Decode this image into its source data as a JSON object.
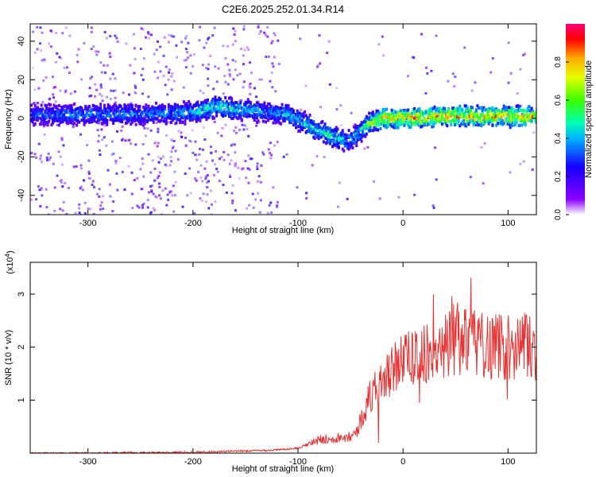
{
  "title": "C2E6.2025.252.01.34.R14",
  "colors": {
    "snr_line": "#e83232",
    "axis": "#000000"
  },
  "chart_data": [
    {
      "type": "heatmap",
      "xlabel": "Height of straight line (km)",
      "ylabel": "Frequency (Hz)",
      "xlim": [
        -355,
        127
      ],
      "ylim": [
        -50,
        49
      ],
      "x_ticks": [
        -300,
        -200,
        -100,
        0,
        100
      ],
      "y_ticks": [
        -40,
        -20,
        0,
        20,
        40
      ],
      "x_tick_labels": [
        "-300",
        "-200",
        "-100",
        "0",
        "100"
      ],
      "y_tick_labels": [
        "-40",
        "-20",
        "0",
        "20",
        "40"
      ],
      "ridge_x": [
        -355,
        -300,
        -250,
        -200,
        -180,
        -150,
        -130,
        -110,
        -90,
        -70,
        -55,
        -45,
        -35,
        -20,
        0,
        40,
        80,
        127
      ],
      "ridge_freq": [
        2,
        2,
        2,
        3,
        6,
        4,
        3,
        2,
        -4,
        -9,
        -12,
        -9,
        -3,
        0,
        0,
        1,
        1,
        1
      ],
      "ridge_amplitude": [
        0.35,
        0.4,
        0.4,
        0.45,
        0.55,
        0.45,
        0.4,
        0.45,
        0.5,
        0.55,
        0.45,
        0.5,
        0.65,
        0.8,
        0.85,
        0.85,
        0.85,
        0.8
      ],
      "colorbar": {
        "label": "Normalized spectral amplitude",
        "range": [
          0,
          1
        ],
        "ticks": [
          0.0,
          0.2,
          0.4,
          0.6,
          0.8
        ],
        "tick_labels": [
          "0.0",
          "0.2",
          "0.4",
          "0.6",
          "0.8"
        ]
      }
    },
    {
      "type": "line",
      "xlabel": "Height of straight line (km)",
      "ylabel": "SNR (10 * v/v)",
      "y_multiplier": "(x10",
      "y_multiplier_exp": "4",
      "y_multiplier_close": ")",
      "xlim": [
        -355,
        127
      ],
      "ylim": [
        0,
        3.6
      ],
      "x_ticks": [
        -300,
        -200,
        -100,
        0,
        100
      ],
      "y_ticks": [
        1,
        2,
        3
      ],
      "x_tick_labels": [
        "-300",
        "-200",
        "-100",
        "0",
        "100"
      ],
      "y_tick_labels": [
        "1",
        "2",
        "3"
      ],
      "series": [
        {
          "x": [
            -355,
            -300,
            -250,
            -200,
            -150,
            -120,
            -100,
            -80,
            -60,
            -45,
            -35,
            -25,
            -15,
            0,
            20,
            40,
            60,
            80,
            100,
            127
          ],
          "y": [
            0.0,
            0.0,
            0.01,
            0.02,
            0.04,
            0.06,
            0.1,
            0.25,
            0.3,
            0.35,
            0.9,
            1.3,
            1.5,
            1.75,
            1.9,
            2.05,
            2.1,
            2.05,
            2.0,
            2.0
          ]
        }
      ]
    }
  ]
}
